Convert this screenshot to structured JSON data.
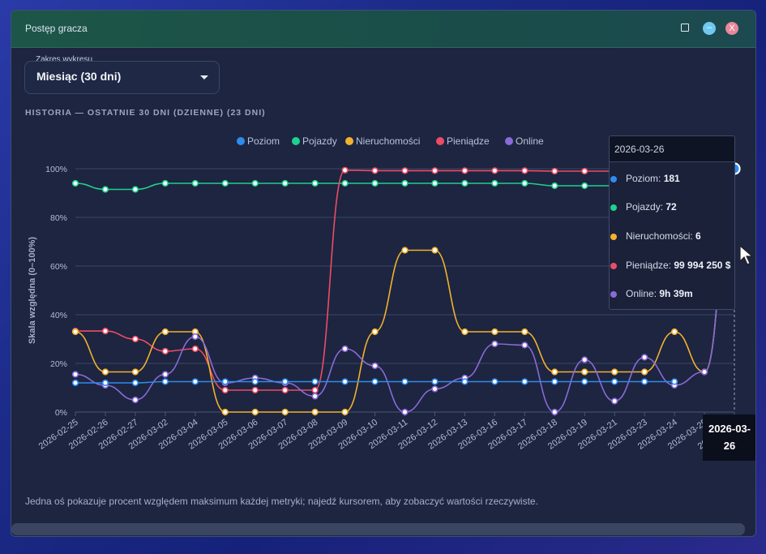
{
  "window": {
    "title": "Postęp gracza"
  },
  "range_select": {
    "label": "Zakres wykresu",
    "value": "Miesiąc (30 dni)"
  },
  "history_title": "HISTORIA — OSTATNIE 30 DNI (DZIENNE) (23 DNI)",
  "footnote": "Jedna oś pokazuje procent względem maksimum każdej metryki; najedź kursorem, aby zobaczyć wartości rzeczywiste.",
  "chart_data": {
    "type": "line",
    "ylabel": "Skala względna (0–100%)",
    "y_ticks": [
      "0%",
      "20%",
      "40%",
      "60%",
      "80%",
      "100%"
    ],
    "ylim": [
      0,
      100
    ],
    "x": [
      "2026-02-25",
      "2026-02-26",
      "2026-02-27",
      "2026-03-02",
      "2026-03-04",
      "2026-03-05",
      "2026-03-06",
      "2026-03-07",
      "2026-03-08",
      "2026-03-09",
      "2026-03-10",
      "2026-03-11",
      "2026-03-12",
      "2026-03-13",
      "2026-03-16",
      "2026-03-17",
      "2026-03-18",
      "2026-03-19",
      "2026-03-21",
      "2026-03-23",
      "2026-03-24",
      "2026-03-25",
      "2026-03-26"
    ],
    "legend_position": "top",
    "series": [
      {
        "name": "Poziom",
        "color": "#2e8cf0",
        "values": [
          12,
          12,
          12,
          12.5,
          12.5,
          12.5,
          12.5,
          12.5,
          12.5,
          12.5,
          12.5,
          12.5,
          12.5,
          12.5,
          12.5,
          12.5,
          12.5,
          12.5,
          12.5,
          12.5,
          12.5,
          null,
          100
        ]
      },
      {
        "name": "Pojazdy",
        "color": "#1fd08f",
        "values": [
          94,
          91.5,
          91.5,
          94,
          94,
          94,
          94,
          94,
          94,
          94,
          94,
          94,
          94,
          94,
          94,
          94,
          93,
          93,
          93,
          93,
          93,
          null,
          100
        ]
      },
      {
        "name": "Nieruchomości",
        "color": "#f3b12e",
        "values": [
          33,
          16.5,
          16.5,
          33,
          33,
          0,
          0,
          0,
          0,
          0,
          33,
          66.5,
          66.5,
          33,
          33,
          33,
          16.5,
          16.5,
          16.5,
          16.5,
          33,
          16.5,
          100
        ]
      },
      {
        "name": "Pieniądze",
        "color": "#ee4b66",
        "values": [
          33.3,
          33.3,
          30,
          25,
          26,
          9,
          9,
          9,
          9,
          99.4,
          99.2,
          99.2,
          99.2,
          99.2,
          99.2,
          99.2,
          99,
          99,
          99,
          99,
          99,
          null,
          100
        ]
      },
      {
        "name": "Online",
        "color": "#8a6ad8",
        "values": [
          15.5,
          11,
          5,
          15.5,
          31,
          12,
          14,
          12,
          6.5,
          26,
          19,
          0,
          9.5,
          14,
          28,
          27.5,
          0,
          21.5,
          4.5,
          22.5,
          11,
          16.5,
          100
        ]
      }
    ]
  },
  "tooltip": {
    "date": "2026-03-26",
    "rows": [
      {
        "name": "Poziom:",
        "value": "181",
        "color": "#2e8cf0"
      },
      {
        "name": "Pojazdy:",
        "value": "72",
        "color": "#1fd08f"
      },
      {
        "name": "Nieruchomości:",
        "value": "6",
        "color": "#f3b12e"
      },
      {
        "name": "Pieniądze:",
        "value": "99 994 250 $",
        "color": "#ee4b66"
      },
      {
        "name": "Online:",
        "value": "9h 39m",
        "color": "#8a6ad8"
      }
    ]
  },
  "hover_date_label": "2026-03-26"
}
